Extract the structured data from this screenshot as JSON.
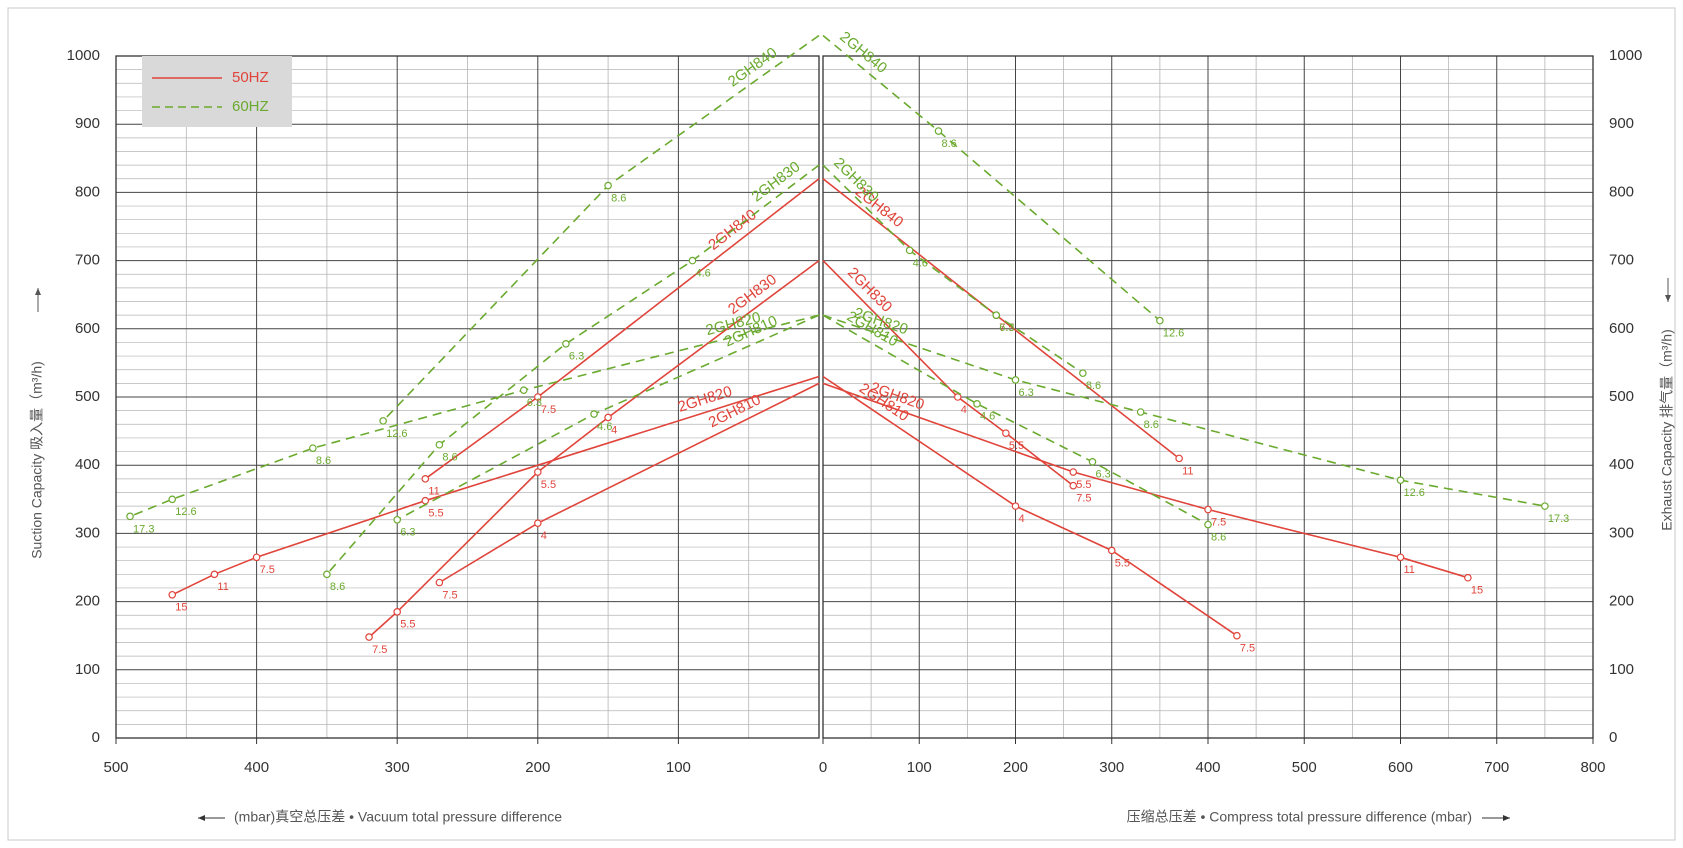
{
  "legend": [
    {
      "label": "50HZ",
      "color": "#e0443a",
      "style": "solid"
    },
    {
      "label": "60HZ",
      "color": "#6aaa2e",
      "style": "dashed"
    }
  ],
  "chart_data": [
    {
      "type": "line",
      "x_label": "(mbar)真空总压差 • Vacuum total pressure difference",
      "y_label": "Suction Capacity  吸入量（m³/h)",
      "xlim": [
        500,
        0
      ],
      "xticks": [
        500,
        400,
        300,
        200,
        100
      ],
      "ylim": [
        0,
        1000
      ],
      "yticks": [
        0,
        100,
        200,
        300,
        400,
        500,
        600,
        700,
        800,
        900,
        1000
      ],
      "grid": true,
      "y_axis_side": "left",
      "series": [
        {
          "name": "2GH840",
          "color": "#e0443a",
          "style": "solid",
          "x": [
            0,
            200,
            280
          ],
          "values": [
            820,
            500,
            380
          ],
          "point_labels": [
            null,
            "7.5",
            "11"
          ]
        },
        {
          "name": "2GH830",
          "color": "#e0443a",
          "style": "solid",
          "x": [
            0,
            150,
            200,
            300,
            320
          ],
          "values": [
            700,
            470,
            390,
            185,
            148
          ],
          "point_labels": [
            null,
            "4",
            "5.5",
            "5.5",
            "7.5"
          ]
        },
        {
          "name": "2GH820",
          "color": "#e0443a",
          "style": "solid",
          "x": [
            0,
            280,
            400,
            430,
            460
          ],
          "values": [
            530,
            348,
            265,
            240,
            210
          ],
          "point_labels": [
            null,
            "5.5",
            "7.5",
            "11",
            "15"
          ]
        },
        {
          "name": "2GH810",
          "color": "#e0443a",
          "style": "solid",
          "x": [
            0,
            200,
            270
          ],
          "values": [
            520,
            315,
            228
          ],
          "point_labels": [
            null,
            "4",
            "7.5"
          ]
        },
        {
          "name": "2GH840",
          "color": "#6aaa2e",
          "style": "dashed",
          "x": [
            0,
            150,
            310
          ],
          "values": [
            1030,
            810,
            465
          ],
          "point_labels": [
            null,
            "8.6",
            "12.6"
          ]
        },
        {
          "name": "2GH830",
          "color": "#6aaa2e",
          "style": "dashed",
          "x": [
            0,
            90,
            180,
            270,
            350
          ],
          "values": [
            840,
            700,
            578,
            430,
            240
          ],
          "point_labels": [
            null,
            "4.6",
            "6.3",
            "8.6",
            "8.6"
          ]
        },
        {
          "name": "2GH820",
          "color": "#6aaa2e",
          "style": "dashed",
          "x": [
            0,
            210,
            360,
            460,
            490
          ],
          "values": [
            620,
            510,
            425,
            350,
            325
          ],
          "point_labels": [
            null,
            "6.3",
            "8.6",
            "12.6",
            "17.3"
          ]
        },
        {
          "name": "2GH810",
          "color": "#6aaa2e",
          "style": "dashed",
          "x": [
            0,
            160,
            300
          ],
          "values": [
            620,
            475,
            320
          ],
          "point_labels": [
            null,
            "4.6",
            "6.3"
          ]
        }
      ]
    },
    {
      "type": "line",
      "x_label": "压缩总压差 • Compress total pressure difference (mbar)",
      "y_label": "Exhaust Capacity  排气量（m³/h)",
      "xlim": [
        0,
        800
      ],
      "xticks": [
        0,
        100,
        200,
        300,
        400,
        500,
        600,
        700,
        800
      ],
      "ylim": [
        0,
        1000
      ],
      "yticks": [
        0,
        100,
        200,
        300,
        400,
        500,
        600,
        700,
        800,
        900,
        1000
      ],
      "grid": true,
      "y_axis_side": "right",
      "series": [
        {
          "name": "2GH840",
          "color": "#e0443a",
          "style": "solid",
          "x": [
            0,
            180,
            370
          ],
          "values": [
            820,
            620,
            410
          ],
          "point_labels": [
            null,
            "7.5",
            "11"
          ]
        },
        {
          "name": "2GH830",
          "color": "#e0443a",
          "style": "solid",
          "x": [
            0,
            140,
            190,
            260
          ],
          "values": [
            700,
            500,
            447,
            370
          ],
          "point_labels": [
            null,
            "4",
            "5.5",
            "7.5"
          ]
        },
        {
          "name": "2GH820",
          "color": "#e0443a",
          "style": "solid",
          "x": [
            0,
            260,
            400,
            600,
            670
          ],
          "values": [
            520,
            390,
            335,
            265,
            235
          ],
          "point_labels": [
            null,
            "5.5",
            "7.5",
            "11",
            "15"
          ]
        },
        {
          "name": "2GH810",
          "color": "#e0443a",
          "style": "solid",
          "x": [
            0,
            200,
            300,
            430
          ],
          "values": [
            530,
            340,
            275,
            150
          ],
          "point_labels": [
            null,
            "4",
            "5.5",
            "7.5"
          ]
        },
        {
          "name": "2GH840",
          "color": "#6aaa2e",
          "style": "dashed",
          "x": [
            0,
            120,
            350
          ],
          "values": [
            1030,
            890,
            612
          ],
          "point_labels": [
            null,
            "8.6",
            "12.6"
          ]
        },
        {
          "name": "2GH830",
          "color": "#6aaa2e",
          "style": "dashed",
          "x": [
            0,
            90,
            180,
            270
          ],
          "values": [
            840,
            715,
            620,
            535
          ],
          "point_labels": [
            null,
            "4.6",
            "6.3",
            "8.6"
          ]
        },
        {
          "name": "2GH820",
          "color": "#6aaa2e",
          "style": "dashed",
          "x": [
            0,
            200,
            330,
            600,
            750
          ],
          "values": [
            620,
            525,
            478,
            378,
            340
          ],
          "point_labels": [
            null,
            "6.3",
            "8.6",
            "12.6",
            "17.3"
          ]
        },
        {
          "name": "2GH810",
          "color": "#6aaa2e",
          "style": "dashed",
          "x": [
            0,
            160,
            280,
            400
          ],
          "values": [
            620,
            490,
            405,
            313
          ],
          "point_labels": [
            null,
            "4.6",
            "6.3",
            "8.6"
          ]
        }
      ]
    }
  ]
}
